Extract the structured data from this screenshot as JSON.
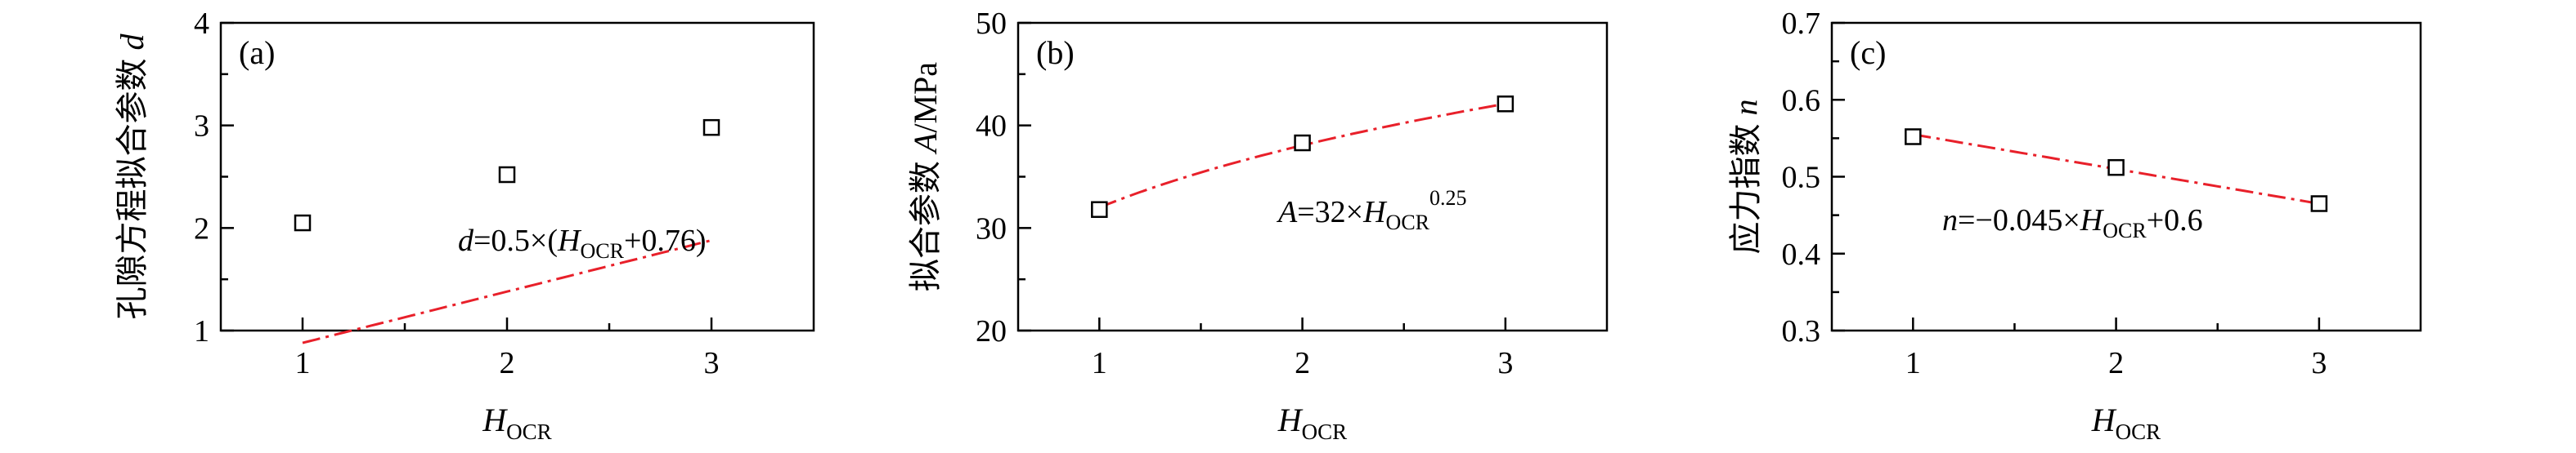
{
  "colors": {
    "fit": "#e8202a",
    "axis": "#000000",
    "marker_fill": "#ffffff"
  },
  "chart_data": [
    {
      "type": "scatter",
      "panel_label": "(a)",
      "title": "",
      "x": [
        1,
        2,
        3
      ],
      "y": [
        2.05,
        2.52,
        2.98
      ],
      "xticks": [
        1,
        2,
        3
      ],
      "yticks": [
        1,
        2,
        3,
        4
      ],
      "xlim": [
        0.6,
        3.5
      ],
      "ylim": [
        1,
        4
      ],
      "xlabel_main": "H",
      "xlabel_sub": "OCR",
      "ylabel_text": "孔隙方程拟合参数",
      "ylabel_symbol": "d",
      "fit": {
        "form": "d=0.5×(H_OCR+0.76)",
        "a": 0.5,
        "b": 0.76
      },
      "equation": {
        "sym": "d",
        "pre": "=0.5×(",
        "sub": "OCR",
        "post": "+0.76)"
      },
      "grid": false,
      "legend": "none"
    },
    {
      "type": "scatter",
      "panel_label": "(b)",
      "title": "",
      "x": [
        1,
        2,
        3
      ],
      "y": [
        31.8,
        38.3,
        42.1
      ],
      "xticks": [
        1,
        2,
        3
      ],
      "yticks": [
        20,
        30,
        40,
        50
      ],
      "xlim": [
        0.6,
        3.5
      ],
      "ylim": [
        20,
        50
      ],
      "xlabel_main": "H",
      "xlabel_sub": "OCR",
      "ylabel_text": "拟合参数",
      "ylabel_symbol": "A",
      "ylabel_unit": "/MPa",
      "fit": {
        "form": "A=32×H_OCR^0.25",
        "a": 32,
        "p": 0.25
      },
      "equation": {
        "sym": "A",
        "pre": "=32×",
        "sub": "OCR",
        "sup": "0.25"
      },
      "grid": false,
      "legend": "none"
    },
    {
      "type": "scatter",
      "panel_label": "(c)",
      "title": "",
      "x": [
        1,
        2,
        3
      ],
      "y": [
        0.552,
        0.512,
        0.465
      ],
      "xticks": [
        1,
        2,
        3
      ],
      "yticks": [
        0.3,
        0.4,
        0.5,
        0.6,
        0.7
      ],
      "xlim": [
        0.6,
        3.5
      ],
      "ylim": [
        0.3,
        0.7
      ],
      "xlabel_main": "H",
      "xlabel_sub": "OCR",
      "ylabel_text": "应力指数",
      "ylabel_symbol": "n",
      "fit": {
        "form": "n=−0.045×H_OCR+0.6",
        "a": -0.045,
        "b": 0.6
      },
      "equation": {
        "sym": "n",
        "pre": "=−0.045×",
        "sub": "OCR",
        "post": "+0.6"
      },
      "grid": false,
      "legend": "none"
    }
  ]
}
